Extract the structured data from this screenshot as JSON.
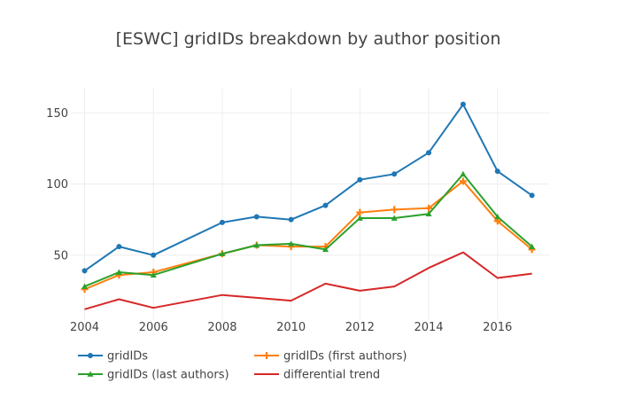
{
  "chart_data": {
    "type": "line",
    "title": "[ESWC] gridIDs breakdown by author position",
    "xlabel": "",
    "ylabel": "",
    "xlim": [
      2003.6,
      2017.5
    ],
    "ylim": [
      5,
      167
    ],
    "xticks": [
      "2004",
      "2006",
      "2008",
      "2010",
      "2012",
      "2014",
      "2016"
    ],
    "yticks": [
      "50",
      "100",
      "150"
    ],
    "grid": true,
    "legend_position": "bottom",
    "x": [
      2004,
      2005,
      2006,
      2008,
      2009,
      2010,
      2011,
      2012,
      2013,
      2014,
      2015,
      2016,
      2017
    ],
    "series": [
      {
        "name": "gridIDs",
        "color": "#1f77b4",
        "marker": "circle",
        "values": [
          39,
          56,
          50,
          73,
          77,
          75,
          85,
          103,
          107,
          122,
          156,
          109,
          92
        ]
      },
      {
        "name": "gridIDs (first authors)",
        "color": "#ff7f0e",
        "marker": "plus",
        "values": [
          26,
          36,
          38,
          51,
          57,
          56,
          56,
          80,
          82,
          83,
          102,
          74,
          54
        ]
      },
      {
        "name": "gridIDs (last authors)",
        "color": "#2ca02c",
        "marker": "triangle",
        "values": [
          28,
          38,
          36,
          51,
          57,
          58,
          54,
          76,
          76,
          79,
          107,
          77,
          56
        ]
      },
      {
        "name": "differential trend",
        "color": "#d62728",
        "marker": "none",
        "values": [
          12,
          19,
          13,
          22,
          20,
          18,
          30,
          25,
          28,
          41,
          52,
          34,
          37
        ]
      }
    ]
  }
}
